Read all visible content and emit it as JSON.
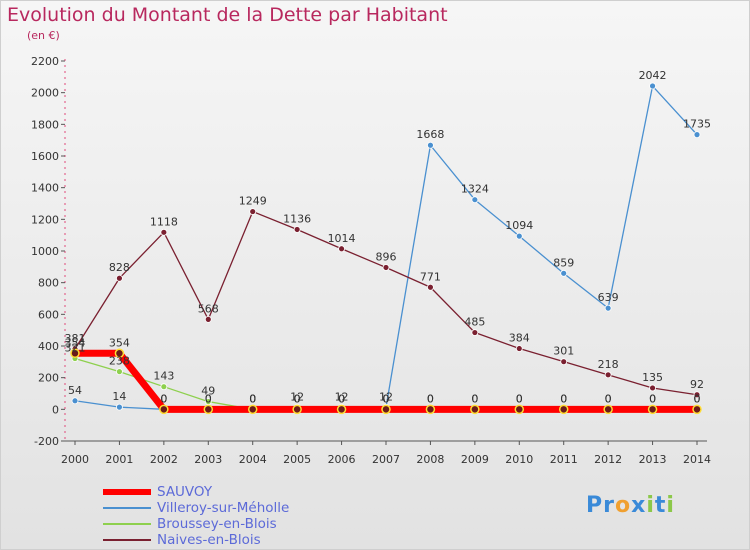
{
  "title": "Evolution du Montant de la Dette par Habitant",
  "unit_label": "(en €)",
  "chart_data": {
    "type": "line",
    "title": "Evolution du Montant de la Dette par Habitant",
    "ylabel": "(en €)",
    "xlabel": "",
    "ylim": [
      -200,
      2200
    ],
    "y_ticks": [
      -200,
      0,
      200,
      400,
      600,
      800,
      1000,
      1200,
      1400,
      1600,
      1800,
      2000,
      2200
    ],
    "categories": [
      "2000",
      "2001",
      "2002",
      "2003",
      "2004",
      "2005",
      "2006",
      "2007",
      "2008",
      "2009",
      "2010",
      "2011",
      "2012",
      "2013",
      "2014"
    ],
    "grid": false,
    "legend_position": "bottom-left",
    "series": [
      {
        "name": "Villeroy-sur-Méholle",
        "color": "#4a90d0",
        "width": 1.3,
        "values": [
          54,
          14,
          0,
          0,
          0,
          12,
          12,
          12,
          1668,
          1324,
          1094,
          859,
          639,
          2042,
          1735
        ]
      },
      {
        "name": "Broussey-en-Blois",
        "color": "#8ed04e",
        "width": 1.3,
        "values": [
          321,
          238,
          143,
          49,
          0,
          0,
          0,
          0,
          0,
          0,
          0,
          0,
          0,
          0,
          0
        ]
      },
      {
        "name": "Naives-en-Blois",
        "color": "#7a2030",
        "width": 1.3,
        "values": [
          381,
          828,
          1118,
          568,
          1249,
          1136,
          1014,
          896,
          771,
          485,
          384,
          301,
          218,
          135,
          92
        ]
      },
      {
        "name": "SAUVOY",
        "color": "#ff0000",
        "width": 7,
        "values": [
          354,
          354,
          0,
          0,
          0,
          0,
          0,
          0,
          0,
          0,
          0,
          0,
          0,
          0,
          0
        ]
      }
    ],
    "data_labels": {
      "Villeroy-sur-Méholle": [
        "54",
        "14",
        "0",
        "0",
        "0",
        "12",
        "12",
        "12",
        "1668",
        "1324",
        "1094",
        "859",
        "639",
        "2042",
        "1735"
      ],
      "Broussey-en-Blois": [
        "321",
        "238",
        "143",
        "49",
        "0",
        "0",
        "0",
        "0",
        "0",
        "0",
        "0",
        "0",
        "0",
        "0",
        "0"
      ],
      "Naives-en-Blois": [
        "381",
        "828",
        "1118",
        "568",
        "1249",
        "1136",
        "1014",
        "896",
        "771",
        "485",
        "384",
        "301",
        "218",
        "135",
        "92"
      ],
      "SAUVOY": [
        "354",
        "354",
        "0",
        "0",
        "0",
        "0",
        "0",
        "0",
        "0",
        "0",
        "0",
        "0",
        "0",
        "0",
        "0"
      ]
    },
    "legend_order": [
      "SAUVOY",
      "Villeroy-sur-Méholle",
      "Broussey-en-Blois",
      "Naives-en-Blois"
    ]
  },
  "logo": {
    "letters": [
      "P",
      "r",
      "o",
      "x",
      "i",
      "t",
      "i"
    ],
    "colors": [
      "#3a8ad8",
      "#3a8ad8",
      "#f0a030",
      "#3a8ad8",
      "#8cc84a",
      "#3a8ad8",
      "#8cc84a"
    ]
  }
}
